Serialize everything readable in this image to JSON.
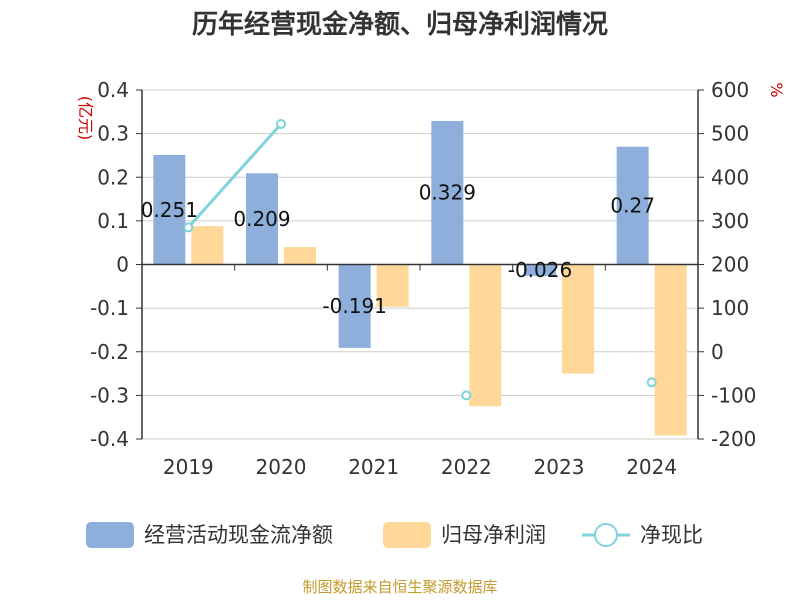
{
  "title": "历年经营现金净额、归母净利润情况",
  "left_unit": "(亿元)",
  "right_unit": "%",
  "source": "制图数据来自恒生聚源数据库",
  "colors": {
    "cash_flow": "#8eaedb",
    "net_profit": "#ffd899",
    "ratio_line": "#7fd3da",
    "axis": "#333333",
    "grid": "#cccccc",
    "title": "#333333",
    "source": "#c49a2c",
    "unit": "#cc0000"
  },
  "chart_data": {
    "type": "bar",
    "categories": [
      "2019",
      "2020",
      "2021",
      "2022",
      "2023",
      "2024"
    ],
    "series": [
      {
        "name": "经营活动现金流净额",
        "type": "bar",
        "axis": "left",
        "values": [
          0.251,
          0.209,
          -0.191,
          0.329,
          -0.026,
          0.27
        ],
        "labels": [
          "0.251",
          "0.209",
          "-0.191",
          "0.329",
          "-0.026",
          "0.27"
        ]
      },
      {
        "name": "归母净利润",
        "type": "bar",
        "axis": "left",
        "values": [
          0.088,
          0.04,
          -0.097,
          -0.325,
          -0.25,
          -0.392
        ]
      },
      {
        "name": "净现比",
        "type": "line",
        "axis": "right",
        "values": [
          285,
          522,
          null,
          -100,
          null,
          -70
        ]
      }
    ],
    "y_left": {
      "min": -0.4,
      "max": 0.4,
      "ticks": [
        "0.4",
        "0.3",
        "0.2",
        "0.1",
        "0",
        "-0.1",
        "-0.2",
        "-0.3",
        "-0.4"
      ]
    },
    "y_right": {
      "min": -200,
      "max": 600,
      "ticks": [
        "600",
        "500",
        "400",
        "300",
        "200",
        "100",
        "0",
        "-100",
        "-200"
      ]
    },
    "grid": true,
    "legend_position": "bottom"
  }
}
